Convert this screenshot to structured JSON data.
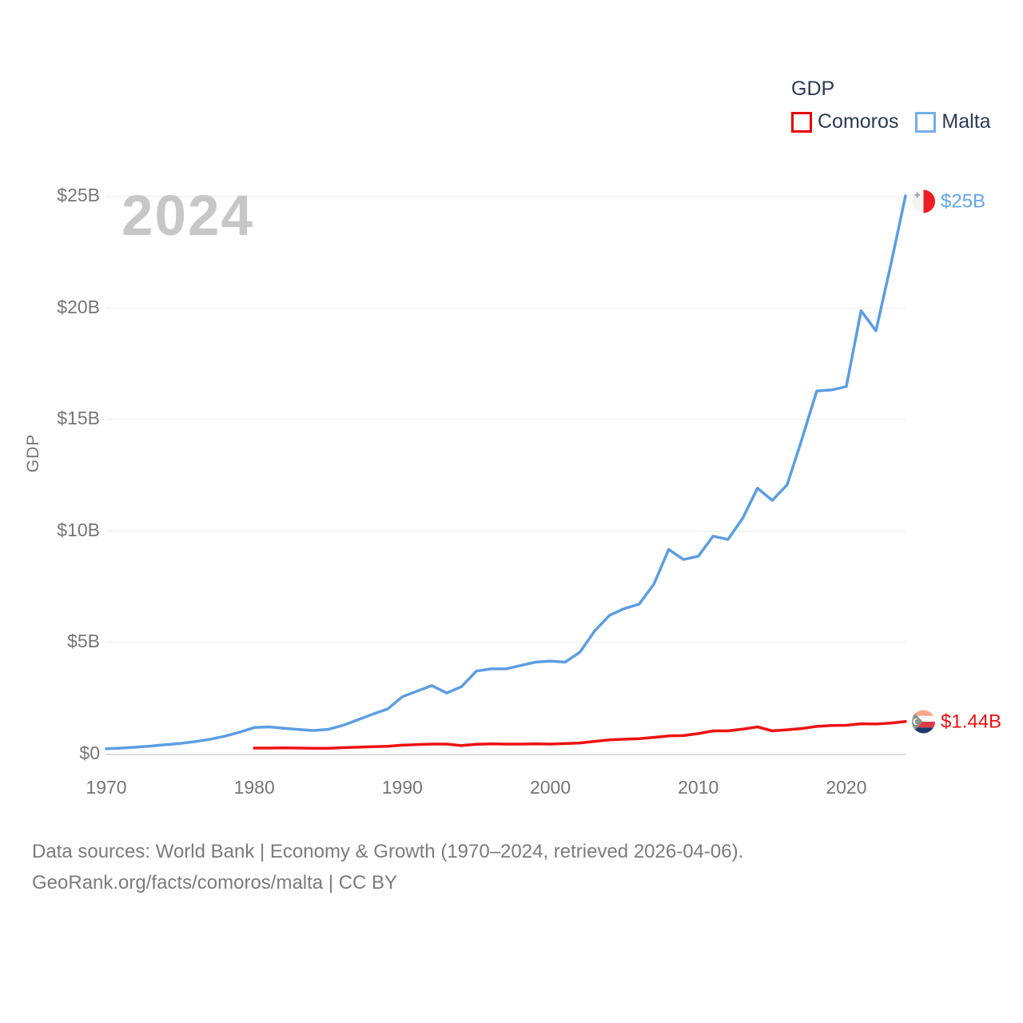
{
  "chart": {
    "watermark": "2024"
  },
  "legend": {
    "title": "GDP"
  },
  "chart_data": {
    "type": "line",
    "title": "GDP",
    "xlabel": "",
    "ylabel": "GDP",
    "xlim": [
      1970,
      2024
    ],
    "ylim": [
      0,
      25
    ],
    "grid": "horizontal",
    "legend_position": "top-right",
    "x_ticks": [
      1970,
      1980,
      1990,
      2000,
      2010,
      2020
    ],
    "y_ticks": [
      {
        "value": 0,
        "label": "$0"
      },
      {
        "value": 5,
        "label": "$5B"
      },
      {
        "value": 10,
        "label": "$10B"
      },
      {
        "value": 15,
        "label": "$15B"
      },
      {
        "value": 20,
        "label": "$20B"
      },
      {
        "value": 25,
        "label": "$25B"
      }
    ],
    "series": [
      {
        "name": "Comoros",
        "color": "#ee1111",
        "end_label": "$1.44B",
        "flag_icon": "comoros-flag",
        "start_year": 1980,
        "values": [
          0.25,
          0.25,
          0.26,
          0.25,
          0.24,
          0.24,
          0.27,
          0.29,
          0.31,
          0.33,
          0.38,
          0.41,
          0.43,
          0.43,
          0.36,
          0.42,
          0.44,
          0.43,
          0.43,
          0.44,
          0.43,
          0.45,
          0.48,
          0.55,
          0.62,
          0.65,
          0.67,
          0.73,
          0.8,
          0.81,
          0.9,
          1.02,
          1.02,
          1.1,
          1.2,
          1.02,
          1.07,
          1.13,
          1.22,
          1.26,
          1.27,
          1.34,
          1.33,
          1.37,
          1.44
        ]
      },
      {
        "name": "Malta",
        "color": "#5b9ee2",
        "end_label": "$25B",
        "flag_icon": "malta-flag",
        "start_year": 1970,
        "values": [
          0.22,
          0.25,
          0.29,
          0.34,
          0.4,
          0.46,
          0.54,
          0.64,
          0.78,
          0.96,
          1.17,
          1.2,
          1.14,
          1.08,
          1.04,
          1.09,
          1.27,
          1.52,
          1.77,
          2.0,
          2.55,
          2.8,
          3.05,
          2.72,
          3.0,
          3.7,
          3.8,
          3.8,
          3.95,
          4.1,
          4.15,
          4.1,
          4.55,
          5.5,
          6.2,
          6.5,
          6.7,
          7.6,
          9.15,
          8.7,
          8.85,
          9.75,
          9.6,
          10.55,
          11.9,
          11.35,
          12.05,
          14.1,
          16.25,
          16.3,
          16.45,
          19.85,
          18.95,
          21.9,
          25.0
        ]
      }
    ]
  },
  "footer": {
    "line1": "Data sources: World Bank | Economy & Growth (1970–2024, retrieved 2026-04-06).",
    "line2": "GeoRank.org/facts/comoros/malta | CC BY"
  }
}
